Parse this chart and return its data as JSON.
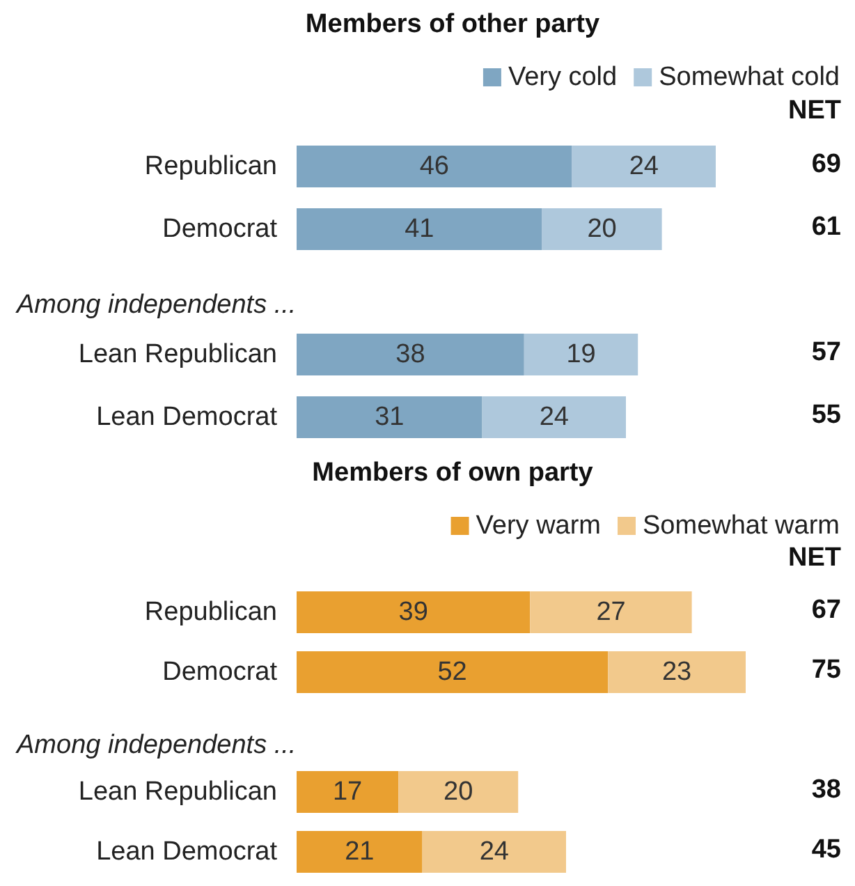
{
  "chart_data": [
    {
      "type": "bar",
      "orientation": "horizontal",
      "stacked": true,
      "title": "Members of other party",
      "categories": [
        "Republican",
        "Democrat",
        null,
        "Lean Republican",
        "Lean Democrat"
      ],
      "series": [
        {
          "name": "Very cold",
          "color": "#7fa6c2",
          "values": [
            46,
            41,
            null,
            38,
            31
          ]
        },
        {
          "name": "Somewhat cold",
          "color": "#aec8dc",
          "values": [
            24,
            20,
            null,
            19,
            24
          ]
        }
      ],
      "data_labels": true,
      "legend": "top right",
      "annotations": [
        "Among independents ...",
        "NET",
        "69",
        "61",
        "57",
        "55"
      ]
    },
    {
      "type": "bar",
      "orientation": "horizontal",
      "stacked": true,
      "title": "Members of own party",
      "categories": [
        "Republican",
        "Democrat",
        null,
        "Lean Republican",
        "Lean Democrat"
      ],
      "series": [
        {
          "name": "Very warm",
          "color": "#e9a030",
          "values": [
            39,
            52,
            null,
            17,
            21
          ]
        },
        {
          "name": "Somewhat warm",
          "color": "#f2c98c",
          "values": [
            27,
            23,
            null,
            20,
            24
          ]
        }
      ],
      "data_labels": true,
      "legend": "top right",
      "annotations": [
        "Among independents ...",
        "NET",
        "67",
        "75",
        "38",
        "45"
      ]
    }
  ]
}
